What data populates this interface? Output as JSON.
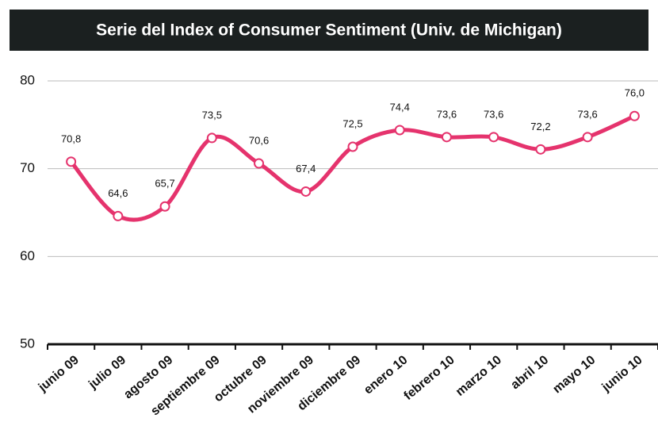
{
  "chart_data": {
    "type": "line",
    "title": "Serie del Index of Consumer Sentiment (Univ. de Michigan)",
    "categories": [
      "junio 09",
      "julio 09",
      "agosto 09",
      "septiembre 09",
      "octubre 09",
      "noviembre 09",
      "diciembre 09",
      "enero 10",
      "febrero 10",
      "marzo 10",
      "abril 10",
      "mayo 10",
      "junio 10"
    ],
    "series": [
      {
        "name": "Index of Consumer Sentiment",
        "color": "#e5336d",
        "values": [
          70.8,
          64.6,
          65.7,
          73.5,
          70.6,
          67.4,
          72.5,
          74.4,
          73.6,
          73.6,
          72.2,
          73.6,
          76.0
        ],
        "value_labels": [
          "70,8",
          "64,6",
          "65,7",
          "73,5",
          "70,6",
          "67,4",
          "72,5",
          "74,4",
          "73,6",
          "73,6",
          "72,2",
          "73,6",
          "76,0"
        ]
      }
    ],
    "ylim": [
      50,
      80
    ],
    "yticks": [
      50,
      60,
      70,
      80
    ],
    "grid": true
  }
}
